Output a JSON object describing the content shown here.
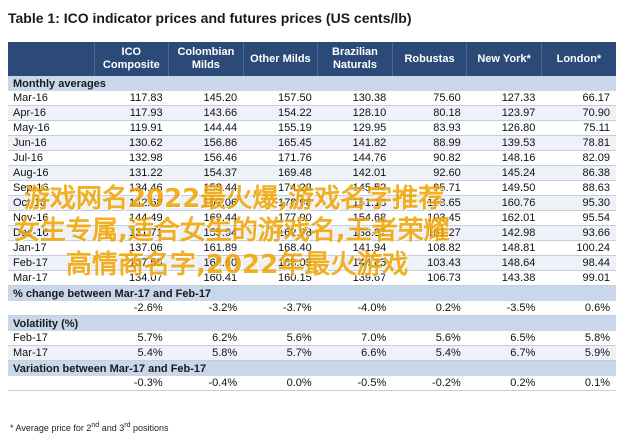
{
  "title": "Table 1: ICO indicator prices and futures prices (US cents/lb)",
  "columns": [
    "",
    "ICO Composite",
    "Colombian Milds",
    "Other Milds",
    "Brazilian Naturals",
    "Robustas",
    "New York*",
    "London*"
  ],
  "sections": [
    {
      "label": "Monthly averages",
      "rows": [
        {
          "label": "Mar-16",
          "values": [
            "117.83",
            "145.20",
            "157.50",
            "130.38",
            "75.60",
            "127.33",
            "66.17"
          ]
        },
        {
          "label": "Apr-16",
          "values": [
            "117.93",
            "143.66",
            "154.22",
            "128.10",
            "80.18",
            "123.97",
            "70.90"
          ]
        },
        {
          "label": "May-16",
          "values": [
            "119.91",
            "144.44",
            "155.19",
            "129.95",
            "83.93",
            "126.80",
            "75.11"
          ]
        },
        {
          "label": "Jun-16",
          "values": [
            "130.62",
            "156.86",
            "165.45",
            "141.82",
            "88.99",
            "139.53",
            "78.81"
          ]
        },
        {
          "label": "Jul-16",
          "values": [
            "132.98",
            "156.46",
            "171.76",
            "144.76",
            "90.82",
            "148.16",
            "82.09"
          ]
        },
        {
          "label": "Aug-16",
          "values": [
            "131.22",
            "154.37",
            "169.48",
            "142.01",
            "92.60",
            "145.24",
            "86.38"
          ]
        },
        {
          "label": "Sep-16",
          "values": [
            "134.46",
            "158.44",
            "174.28",
            "145.52",
            "95.71",
            "149.50",
            "88.63"
          ]
        },
        {
          "label": "Oct-16",
          "values": [
            "142.68",
            "167.06",
            "178.96",
            "151.18",
            "103.65",
            "160.76",
            "95.30"
          ]
        },
        {
          "label": "Nov-16",
          "values": [
            "144.49",
            "169.44",
            "177.90",
            "154.68",
            "103.45",
            "162.01",
            "95.54"
          ]
        },
        {
          "label": "Dec-16",
          "values": [
            "131.71",
            "155.94",
            "162.38",
            "138.27",
            "101.27",
            "142.98",
            "93.66"
          ]
        },
        {
          "label": "Jan-17",
          "values": [
            "137.06",
            "161.89",
            "168.40",
            "141.94",
            "108.82",
            "148.81",
            "100.24"
          ]
        },
        {
          "label": "Feb-17",
          "values": [
            "137.59",
            "165.60",
            "168.03",
            "144.65",
            "103.43",
            "148.64",
            "98.44"
          ]
        },
        {
          "label": "Mar-17",
          "values": [
            "134.07",
            "160.41",
            "160.15",
            "139.67",
            "106.73",
            "143.38",
            "99.01"
          ]
        }
      ]
    },
    {
      "label": "% change between Mar-17 and Feb-17",
      "rows": [
        {
          "label": "",
          "values": [
            "-2.6%",
            "-3.2%",
            "-3.7%",
            "-4.0%",
            "0.2%",
            "-3.5%",
            "0.6%"
          ]
        }
      ]
    },
    {
      "label": "Volatility (%)",
      "rows": [
        {
          "label": "Feb-17",
          "values": [
            "5.7%",
            "6.2%",
            "5.6%",
            "7.0%",
            "5.6%",
            "6.5%",
            "5.8%"
          ]
        },
        {
          "label": "Mar-17",
          "values": [
            "5.4%",
            "5.8%",
            "5.7%",
            "6.6%",
            "5.4%",
            "6.7%",
            "5.9%"
          ]
        }
      ]
    },
    {
      "label": "Variation between Mar-17 and Feb-17",
      "rows": [
        {
          "label": "",
          "values": [
            "-0.3%",
            "-0.4%",
            "0.0%",
            "-0.5%",
            "-0.2%",
            "0.2%",
            "0.1%"
          ]
        }
      ]
    }
  ],
  "footnote": {
    "prefix": "* Average price for ",
    "first": "2",
    "first_sup": "nd",
    "middle": " and ",
    "second": "3",
    "second_sup": "rd",
    "suffix": " positions"
  },
  "watermark": {
    "line1": "游戏网名2022最火爆,游戏名字推荐",
    "line2": "女生专属,适合女生的游戏名,王者荣耀",
    "line3": "高情商名字,2022年最火游戏"
  }
}
